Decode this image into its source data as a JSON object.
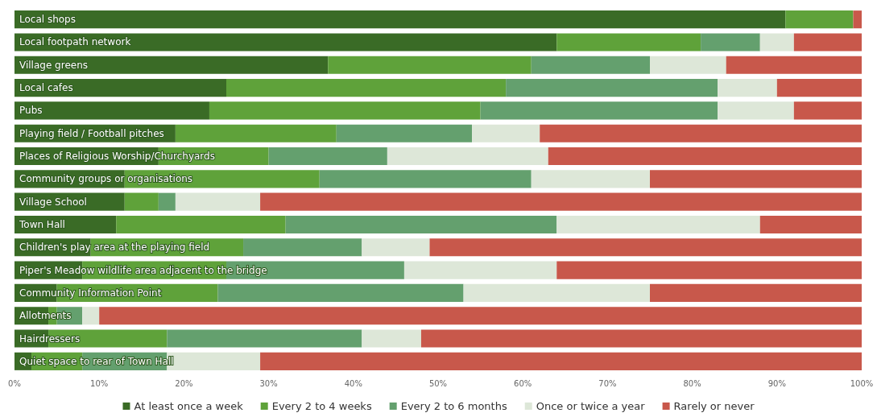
{
  "chart_data": {
    "type": "bar",
    "orientation": "horizontal",
    "stacked": true,
    "categories": [
      "Local shops",
      "Local footpath network",
      "Village greens",
      "Local cafes",
      "Pubs",
      "Playing field / Football pitches",
      "Places of Religious Worship/Churchyards",
      "Community groups or organisations",
      "Village School",
      "Town Hall",
      "Children's play area at the playing field",
      "Piper's Meadow wildlife area adjacent to the bridge",
      "Community Information Point",
      "Allotments",
      "Hairdressers",
      "Quiet space to rear of Town Hall"
    ],
    "series": [
      {
        "name": "At least once a week",
        "color": "#3a6b26",
        "values": [
          91,
          64,
          37,
          25,
          23,
          19,
          17,
          13,
          13,
          12,
          9,
          8,
          5,
          4,
          4,
          2
        ]
      },
      {
        "name": "Every 2 to 4 weeks",
        "color": "#5fa23a",
        "values": [
          8,
          17,
          24,
          33,
          32,
          19,
          13,
          23,
          4,
          20,
          18,
          17,
          19,
          1,
          14,
          6
        ]
      },
      {
        "name": "Every 2 to 6 months",
        "color": "#64a06e",
        "values": [
          0,
          7,
          14,
          25,
          28,
          16,
          14,
          25,
          2,
          32,
          14,
          21,
          29,
          3,
          23,
          10
        ]
      },
      {
        "name": "Once or twice a year",
        "color": "#dde7d8",
        "values": [
          0,
          4,
          9,
          7,
          9,
          8,
          19,
          14,
          10,
          24,
          8,
          18,
          22,
          2,
          7,
          11
        ]
      },
      {
        "name": "Rarely or never",
        "color": "#c8584b",
        "values": [
          1,
          8,
          16,
          10,
          8,
          38,
          37,
          25,
          71,
          12,
          51,
          36,
          25,
          90,
          52,
          71
        ]
      }
    ],
    "xlim": [
      0,
      100
    ],
    "xticks": [
      {
        "value": 0,
        "label": "0%"
      },
      {
        "value": 10,
        "label": "10%"
      },
      {
        "value": 20,
        "label": "20%"
      },
      {
        "value": 30,
        "label": "30%"
      },
      {
        "value": 40,
        "label": "40%"
      },
      {
        "value": 50,
        "label": "50%"
      },
      {
        "value": 60,
        "label": "60%"
      },
      {
        "value": 70,
        "label": "70%"
      },
      {
        "value": 80,
        "label": "80%"
      },
      {
        "value": 90,
        "label": "90%"
      },
      {
        "value": 100,
        "label": "100%"
      }
    ],
    "grid": false,
    "legend": "bottom"
  }
}
